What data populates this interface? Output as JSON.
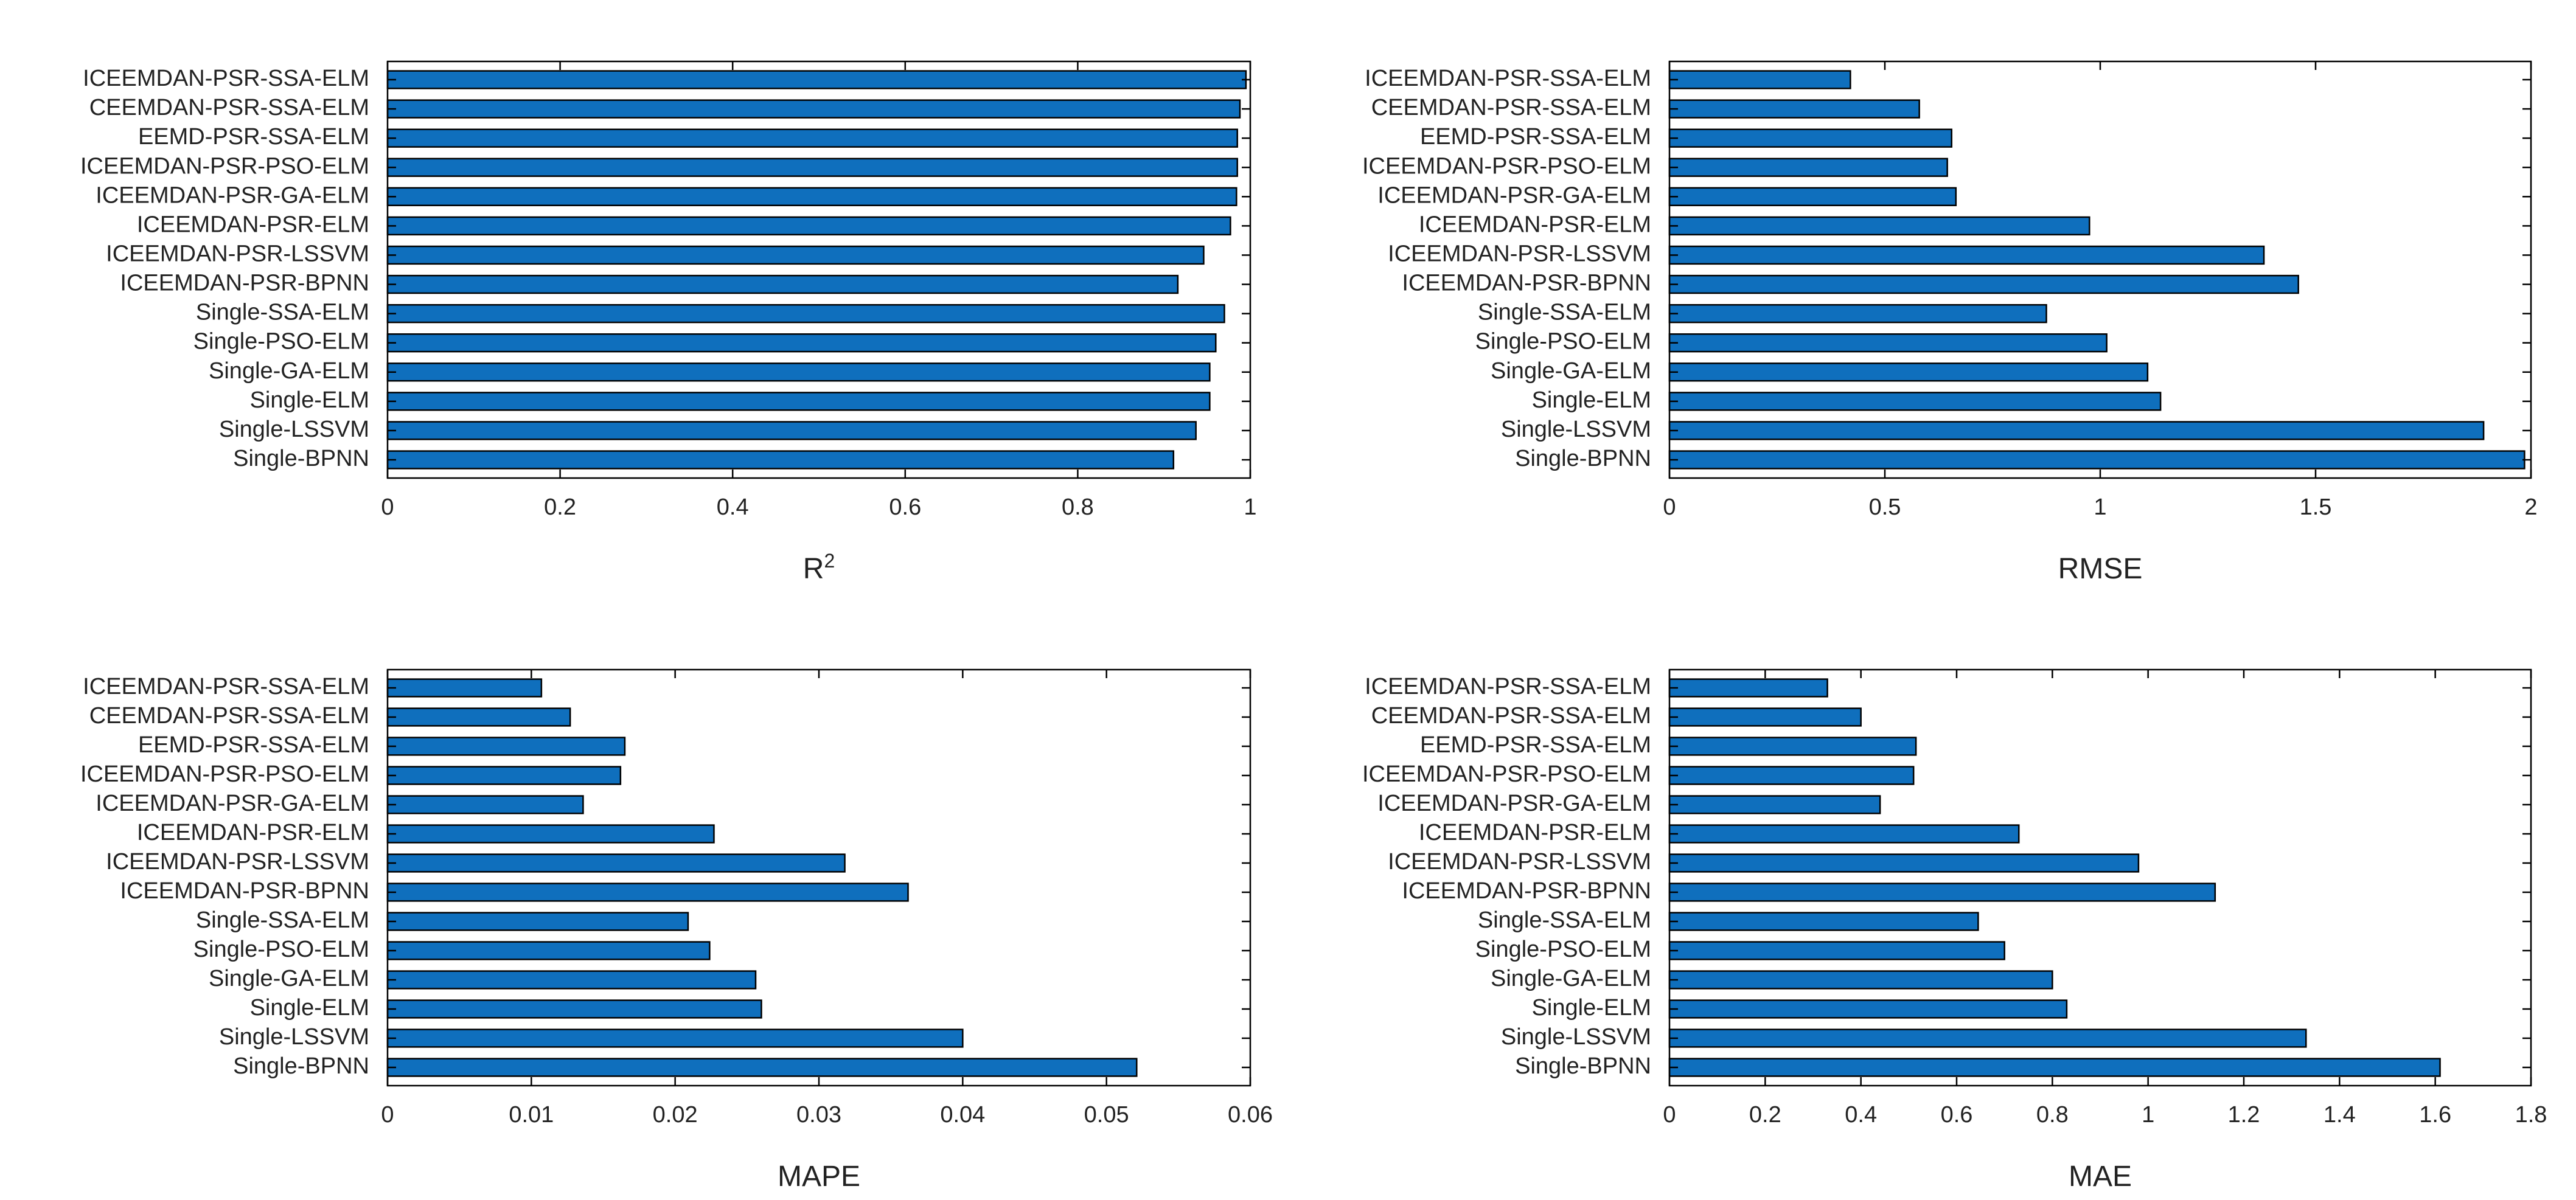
{
  "chart_data": [
    {
      "type": "bar",
      "orientation": "horizontal",
      "xlabel": "R",
      "xlabel_sup": "2",
      "xlim": [
        0,
        1
      ],
      "xticks": [
        "0",
        "0.2",
        "0.4",
        "0.6",
        "0.8",
        "1"
      ],
      "bar_color": "#0f6fbd",
      "categories": [
        "ICEEMDAN-PSR-SSA-ELM",
        "CEEMDAN-PSR-SSA-ELM",
        "EEMD-PSR-SSA-ELM",
        "ICEEMDAN-PSR-PSO-ELM",
        "ICEEMDAN-PSR-GA-ELM",
        "ICEEMDAN-PSR-ELM",
        "ICEEMDAN-PSR-LSSVM",
        "ICEEMDAN-PSR-BPNN",
        "Single-SSA-ELM",
        "Single-PSO-ELM",
        "Single-GA-ELM",
        "Single-ELM",
        "Single-LSSVM",
        "Single-BPNN"
      ],
      "values": [
        0.995,
        0.988,
        0.985,
        0.985,
        0.984,
        0.977,
        0.946,
        0.916,
        0.97,
        0.96,
        0.953,
        0.953,
        0.937,
        0.911
      ]
    },
    {
      "type": "bar",
      "orientation": "horizontal",
      "xlabel": "RMSE",
      "xlim": [
        0,
        2
      ],
      "xticks": [
        "0",
        "0.5",
        "1",
        "1.5",
        "2"
      ],
      "bar_color": "#0f6fbd",
      "categories": [
        "ICEEMDAN-PSR-SSA-ELM",
        "CEEMDAN-PSR-SSA-ELM",
        "EEMD-PSR-SSA-ELM",
        "ICEEMDAN-PSR-PSO-ELM",
        "ICEEMDAN-PSR-GA-ELM",
        "ICEEMDAN-PSR-ELM",
        "ICEEMDAN-PSR-LSSVM",
        "ICEEMDAN-PSR-BPNN",
        "Single-SSA-ELM",
        "Single-PSO-ELM",
        "Single-GA-ELM",
        "Single-ELM",
        "Single-LSSVM",
        "Single-BPNN"
      ],
      "values": [
        0.42,
        0.58,
        0.655,
        0.645,
        0.665,
        0.975,
        1.38,
        1.46,
        0.875,
        1.015,
        1.11,
        1.14,
        1.89,
        1.985
      ]
    },
    {
      "type": "bar",
      "orientation": "horizontal",
      "xlabel": "MAPE",
      "xlim": [
        0,
        0.06
      ],
      "xticks": [
        "0",
        "0.01",
        "0.02",
        "0.03",
        "0.04",
        "0.05",
        "0.06"
      ],
      "bar_color": "#0f6fbd",
      "categories": [
        "ICEEMDAN-PSR-SSA-ELM",
        "CEEMDAN-PSR-SSA-ELM",
        "EEMD-PSR-SSA-ELM",
        "ICEEMDAN-PSR-PSO-ELM",
        "ICEEMDAN-PSR-GA-ELM",
        "ICEEMDAN-PSR-ELM",
        "ICEEMDAN-PSR-LSSVM",
        "ICEEMDAN-PSR-BPNN",
        "Single-SSA-ELM",
        "Single-PSO-ELM",
        "Single-GA-ELM",
        "Single-ELM",
        "Single-LSSVM",
        "Single-BPNN"
      ],
      "values": [
        0.0107,
        0.0127,
        0.0165,
        0.0162,
        0.0136,
        0.0227,
        0.0318,
        0.0362,
        0.0209,
        0.0224,
        0.0256,
        0.026,
        0.04,
        0.0521
      ]
    },
    {
      "type": "bar",
      "orientation": "horizontal",
      "xlabel": "MAE",
      "xlim": [
        0,
        1.8
      ],
      "xticks": [
        "0",
        "0.2",
        "0.4",
        "0.6",
        "0.8",
        "1",
        "1.2",
        "1.4",
        "1.6",
        "1.8"
      ],
      "bar_color": "#0f6fbd",
      "categories": [
        "ICEEMDAN-PSR-SSA-ELM",
        "CEEMDAN-PSR-SSA-ELM",
        "EEMD-PSR-SSA-ELM",
        "ICEEMDAN-PSR-PSO-ELM",
        "ICEEMDAN-PSR-GA-ELM",
        "ICEEMDAN-PSR-ELM",
        "ICEEMDAN-PSR-LSSVM",
        "ICEEMDAN-PSR-BPNN",
        "Single-SSA-ELM",
        "Single-PSO-ELM",
        "Single-GA-ELM",
        "Single-ELM",
        "Single-LSSVM",
        "Single-BPNN"
      ],
      "values": [
        0.33,
        0.4,
        0.515,
        0.51,
        0.44,
        0.73,
        0.98,
        1.14,
        0.645,
        0.7,
        0.8,
        0.83,
        1.33,
        1.61
      ]
    }
  ]
}
